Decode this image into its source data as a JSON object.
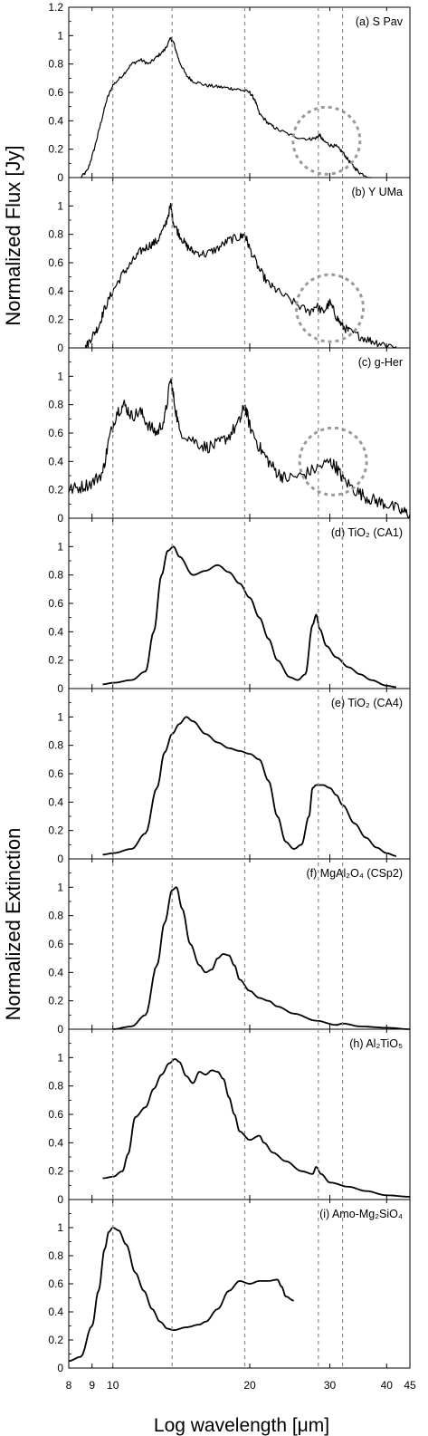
{
  "figure": {
    "ylabel_top": "Normalized Flux [Jy]",
    "ylabel_bottom": "Normalized Extinction",
    "xlabel": "Log wavelength [μm]",
    "x_axis_scale": "log",
    "x_ticks": [
      8,
      9,
      10,
      20,
      30,
      40,
      45
    ],
    "x_range": [
      8,
      45
    ],
    "vertical_dashed_lines_um": [
      10,
      13.5,
      19.5,
      28.3,
      32
    ],
    "line_color": "#000000",
    "dashed_color": "#8a8a8a",
    "circle_color": "#9a9a9a"
  },
  "chart_data": [
    {
      "type": "line",
      "panel_label": "(a) S Pav",
      "ylim": [
        0,
        1.2
      ],
      "y_ticks": [
        0,
        0.2,
        0.4,
        0.6,
        0.8,
        1,
        1.2
      ],
      "noise": 0.012,
      "circle_center": [
        29.5,
        0.26
      ],
      "x": [
        8.5,
        8.8,
        9.1,
        9.4,
        9.7,
        10.0,
        10.5,
        11.0,
        11.5,
        12.0,
        12.5,
        13.0,
        13.4,
        13.6,
        14.0,
        14.5,
        15.0,
        16.0,
        17.0,
        18.0,
        19.0,
        20.0,
        20.5,
        21.0,
        22.0,
        23.0,
        25.0,
        27.0,
        28.0,
        28.5,
        29.0,
        30.0,
        31.0,
        32.0,
        33.0,
        34.0,
        35.0,
        37.0
      ],
      "y": [
        0.0,
        0.05,
        0.2,
        0.38,
        0.55,
        0.65,
        0.72,
        0.8,
        0.83,
        0.8,
        0.85,
        0.9,
        0.98,
        0.95,
        0.82,
        0.72,
        0.68,
        0.65,
        0.64,
        0.63,
        0.62,
        0.6,
        0.55,
        0.45,
        0.38,
        0.34,
        0.29,
        0.27,
        0.28,
        0.3,
        0.26,
        0.23,
        0.22,
        0.18,
        0.12,
        0.07,
        0.03,
        0.0
      ]
    },
    {
      "type": "line",
      "panel_label": "(b) Y UMa",
      "ylim": [
        0,
        1.2
      ],
      "y_ticks": [
        0,
        0.2,
        0.4,
        0.6,
        0.8,
        1
      ],
      "noise": 0.03,
      "circle_center": [
        30.0,
        0.28
      ],
      "x": [
        8.7,
        9.0,
        9.3,
        9.6,
        10.0,
        10.5,
        11.0,
        11.5,
        12.0,
        12.5,
        13.0,
        13.4,
        13.6,
        14.0,
        14.5,
        15.0,
        16.0,
        17.0,
        18.0,
        19.0,
        19.5,
        20.0,
        21.0,
        22.0,
        23.0,
        25.0,
        27.0,
        28.0,
        29.0,
        30.0,
        31.0,
        32.0,
        33.0,
        35.0,
        37.0,
        39.0,
        42.0
      ],
      "y": [
        0.0,
        0.08,
        0.15,
        0.28,
        0.4,
        0.52,
        0.6,
        0.68,
        0.72,
        0.75,
        0.85,
        1.0,
        0.88,
        0.8,
        0.72,
        0.68,
        0.66,
        0.7,
        0.76,
        0.78,
        0.8,
        0.7,
        0.55,
        0.45,
        0.4,
        0.32,
        0.25,
        0.3,
        0.25,
        0.32,
        0.22,
        0.15,
        0.12,
        0.08,
        0.05,
        0.03,
        0.01
      ]
    },
    {
      "type": "line",
      "panel_label": "(c) g-Her",
      "ylim": [
        0,
        1.2
      ],
      "y_ticks": [
        0,
        0.2,
        0.4,
        0.6,
        0.8,
        1
      ],
      "noise": 0.045,
      "circle_center": [
        30.5,
        0.4
      ],
      "x": [
        8.0,
        8.5,
        9.0,
        9.5,
        9.8,
        10.2,
        10.6,
        11.0,
        11.5,
        12.0,
        12.5,
        13.0,
        13.4,
        13.6,
        14.0,
        15.0,
        16.0,
        17.0,
        18.0,
        19.0,
        19.5,
        20.0,
        21.0,
        22.0,
        23.0,
        24.0,
        26.0,
        28.0,
        30.0,
        31.0,
        32.0,
        34.0,
        36.0,
        38.0,
        40.0,
        43.0,
        45.0
      ],
      "y": [
        0.2,
        0.22,
        0.25,
        0.32,
        0.55,
        0.75,
        0.8,
        0.72,
        0.75,
        0.65,
        0.6,
        0.7,
        0.98,
        0.85,
        0.62,
        0.55,
        0.5,
        0.52,
        0.58,
        0.68,
        0.8,
        0.65,
        0.5,
        0.4,
        0.32,
        0.28,
        0.3,
        0.35,
        0.4,
        0.36,
        0.28,
        0.2,
        0.15,
        0.12,
        0.1,
        0.05,
        0.03
      ]
    },
    {
      "type": "line",
      "panel_label": "(d) TiO₂ (CA1)",
      "ylim": [
        0,
        1.2
      ],
      "y_ticks": [
        0,
        0.2,
        0.4,
        0.6,
        0.8,
        1
      ],
      "noise": 0,
      "x": [
        9.5,
        10.0,
        11.0,
        11.8,
        12.3,
        12.8,
        13.2,
        13.6,
        14.0,
        15.0,
        16.0,
        17.0,
        18.0,
        19.0,
        20.0,
        21.0,
        22.0,
        23.0,
        24.5,
        25.5,
        26.5,
        27.5,
        28.0,
        28.5,
        29.5,
        31.0,
        33.0,
        35.0,
        37.0,
        40.0,
        42.0
      ],
      "y": [
        0.03,
        0.04,
        0.06,
        0.12,
        0.4,
        0.8,
        0.97,
        1.0,
        0.93,
        0.8,
        0.83,
        0.87,
        0.82,
        0.74,
        0.64,
        0.5,
        0.35,
        0.2,
        0.08,
        0.06,
        0.1,
        0.45,
        0.52,
        0.42,
        0.3,
        0.22,
        0.15,
        0.1,
        0.06,
        0.02,
        0.01
      ]
    },
    {
      "type": "line",
      "panel_label": "(e) TiO₂ (CA4)",
      "ylim": [
        0,
        1.2
      ],
      "y_ticks": [
        0,
        0.2,
        0.4,
        0.6,
        0.8,
        1
      ],
      "noise": 0,
      "x": [
        9.5,
        10.0,
        11.0,
        11.8,
        12.5,
        13.0,
        13.5,
        14.0,
        14.5,
        15.0,
        16.0,
        17.0,
        18.0,
        19.0,
        20.0,
        21.0,
        22.0,
        23.0,
        24.0,
        25.0,
        26.0,
        27.0,
        27.5,
        28.0,
        29.0,
        30.0,
        31.0,
        32.0,
        34.0,
        36.0,
        38.0,
        40.0,
        42.0
      ],
      "y": [
        0.03,
        0.04,
        0.07,
        0.18,
        0.5,
        0.75,
        0.88,
        0.95,
        1.0,
        0.97,
        0.88,
        0.82,
        0.78,
        0.76,
        0.74,
        0.7,
        0.55,
        0.3,
        0.12,
        0.07,
        0.1,
        0.3,
        0.5,
        0.52,
        0.52,
        0.5,
        0.45,
        0.38,
        0.25,
        0.15,
        0.08,
        0.04,
        0.02
      ]
    },
    {
      "type": "line",
      "panel_label": "(f) MgAl₂O₄ (CSp2)",
      "ylim": [
        0,
        1.2
      ],
      "y_ticks": [
        0,
        0.2,
        0.4,
        0.6,
        0.8,
        1
      ],
      "noise": 0,
      "x": [
        10.0,
        11.0,
        11.8,
        12.5,
        13.0,
        13.5,
        13.8,
        14.2,
        14.8,
        15.5,
        16.0,
        16.5,
        17.0,
        17.5,
        18.0,
        18.5,
        19.0,
        20.0,
        21.0,
        22.0,
        23.0,
        25.0,
        28.0,
        31.0,
        32.0,
        35.0,
        40.0,
        45.0
      ],
      "y": [
        0.0,
        0.02,
        0.1,
        0.45,
        0.75,
        0.98,
        1.0,
        0.85,
        0.6,
        0.45,
        0.4,
        0.42,
        0.5,
        0.53,
        0.52,
        0.45,
        0.35,
        0.27,
        0.22,
        0.2,
        0.16,
        0.11,
        0.06,
        0.03,
        0.04,
        0.02,
        0.01,
        0.0
      ]
    },
    {
      "type": "line",
      "panel_label": "(h) Al₂TiO₅",
      "ylim": [
        0,
        1.2
      ],
      "y_ticks": [
        0,
        0.2,
        0.4,
        0.6,
        0.8,
        1
      ],
      "noise": 0,
      "x": [
        9.5,
        10.0,
        10.5,
        10.8,
        11.2,
        11.8,
        12.3,
        12.8,
        13.3,
        13.7,
        14.0,
        14.5,
        15.0,
        15.5,
        16.0,
        16.5,
        17.0,
        17.5,
        18.0,
        18.5,
        19.0,
        20.0,
        21.0,
        21.5,
        22.5,
        24.0,
        26.0,
        27.5,
        28.0,
        28.7,
        30.0,
        33.0,
        36.0,
        40.0,
        45.0
      ],
      "y": [
        0.15,
        0.16,
        0.2,
        0.32,
        0.58,
        0.65,
        0.78,
        0.88,
        0.96,
        0.99,
        0.97,
        0.87,
        0.82,
        0.9,
        0.88,
        0.91,
        0.9,
        0.85,
        0.72,
        0.6,
        0.48,
        0.42,
        0.45,
        0.4,
        0.33,
        0.27,
        0.2,
        0.18,
        0.23,
        0.18,
        0.12,
        0.09,
        0.06,
        0.03,
        0.02
      ]
    },
    {
      "type": "line",
      "panel_label": "(i) Amo-Mg₂SiO₄",
      "ylim": [
        0,
        1.2
      ],
      "y_ticks": [
        0,
        0.2,
        0.4,
        0.6,
        0.8,
        1
      ],
      "noise": 0,
      "x": [
        8.0,
        8.5,
        9.0,
        9.3,
        9.6,
        9.8,
        10.0,
        10.3,
        10.7,
        11.2,
        11.7,
        12.2,
        12.7,
        13.2,
        13.6,
        14.5,
        15.5,
        16.0,
        17.0,
        18.0,
        19.0,
        20.0,
        21.0,
        22.0,
        23.0,
        23.5,
        24.0,
        25.0
      ],
      "y": [
        0.05,
        0.08,
        0.3,
        0.55,
        0.85,
        0.97,
        1.0,
        0.98,
        0.88,
        0.68,
        0.55,
        0.42,
        0.33,
        0.28,
        0.27,
        0.29,
        0.31,
        0.33,
        0.42,
        0.55,
        0.62,
        0.6,
        0.62,
        0.62,
        0.63,
        0.58,
        0.51,
        0.48
      ]
    }
  ]
}
